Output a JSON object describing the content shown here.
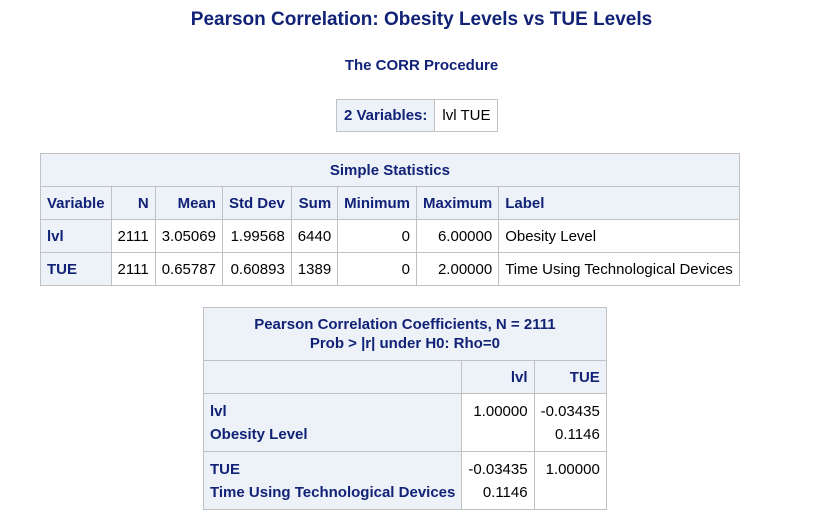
{
  "title": "Pearson Correlation: Obesity Levels vs TUE Levels",
  "procedure": "The CORR Procedure",
  "variables_box": {
    "label": "2 Variables:",
    "value": "lvl TUE"
  },
  "simple_statistics": {
    "caption": "Simple Statistics",
    "headers": [
      "Variable",
      "N",
      "Mean",
      "Std Dev",
      "Sum",
      "Minimum",
      "Maximum",
      "Label"
    ],
    "rows": [
      {
        "variable": "lvl",
        "n": "2111",
        "mean": "3.05069",
        "std_dev": "1.99568",
        "sum": "6440",
        "minimum": "0",
        "maximum": "6.00000",
        "label": "Obesity Level"
      },
      {
        "variable": "TUE",
        "n": "2111",
        "mean": "0.65787",
        "std_dev": "0.60893",
        "sum": "1389",
        "minimum": "0",
        "maximum": "2.00000",
        "label": "Time Using Technological Devices"
      }
    ]
  },
  "correlation": {
    "caption_line1": "Pearson Correlation Coefficients, N = 2111",
    "caption_line2": "Prob > |r| under H0: Rho=0",
    "col_headers": [
      "lvl",
      "TUE"
    ],
    "rows": [
      {
        "var": "lvl",
        "label": "Obesity Level",
        "r": [
          "1.00000",
          "-0.03435"
        ],
        "p": [
          "",
          "0.1146"
        ]
      },
      {
        "var": "TUE",
        "label": "Time Using Technological Devices",
        "r": [
          "-0.03435",
          "1.00000"
        ],
        "p": [
          "0.1146",
          ""
        ]
      }
    ]
  }
}
